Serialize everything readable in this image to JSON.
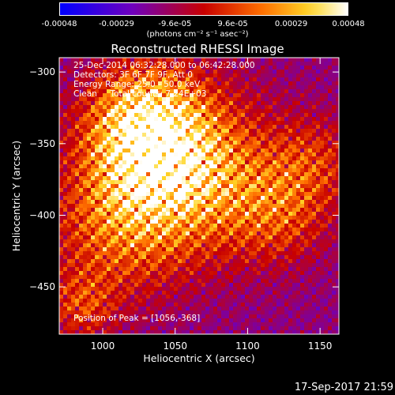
{
  "colorbar": {
    "ticks": [
      "-0.00048",
      "-0.00029",
      "-9.6e-05",
      "9.6e-05",
      "0.00029",
      "0.00048"
    ],
    "tick_values": [
      -0.00048,
      -0.00029,
      -9.6e-05,
      9.6e-05,
      0.00029,
      0.00048
    ],
    "unit": "(photons cm⁻² s⁻¹ asec⁻²)",
    "range": [
      -0.00048,
      0.00048
    ]
  },
  "annotations": {
    "line1": "25-Dec-2014 06:32:28.000 to 06:42:28.000",
    "line2": "Detectors: 3F 6F 7F 9F, Att 0",
    "line3": "Energy Range: 25.0 - 50.0 keV",
    "line4": "Clean     Total counts: 7.24E+03",
    "peak": "Position of Peak = [1056,-368]"
  },
  "footer": "17-Sep-2017 21:59",
  "chart_data": {
    "type": "heatmap",
    "title": "Reconstructed RHESSI Image",
    "xlabel": "Heliocentric X (arcsec)",
    "ylabel": "Heliocentric Y (arcsec)",
    "xlim": [
      970,
      1163
    ],
    "ylim": [
      -483,
      -290
    ],
    "xticks": [
      1000,
      1050,
      1100,
      1150
    ],
    "yticks": [
      -300,
      -350,
      -400,
      -450
    ],
    "peak": {
      "x": 1056,
      "y": -368
    },
    "colormap": "blue-purple-red-orange-yellow-white",
    "grid": false
  }
}
